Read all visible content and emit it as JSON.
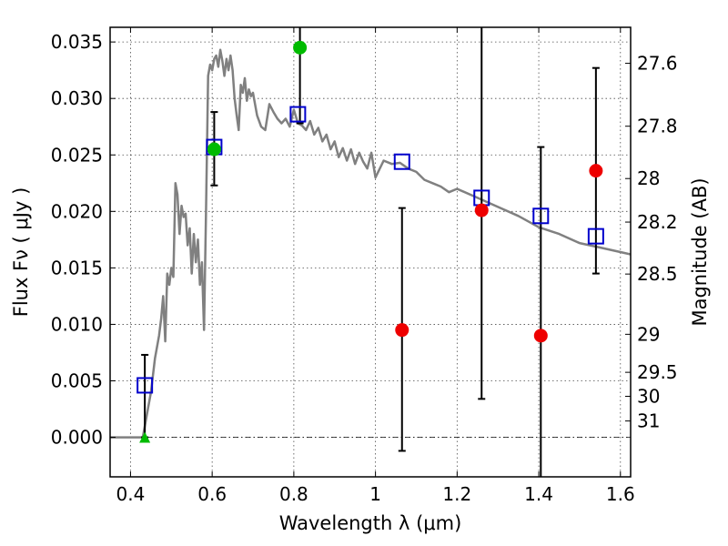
{
  "chart_data": {
    "type": "scatter",
    "xlabel": "Wavelength  λ (μm)",
    "ylabel": "Flux  Fν  ( μJy )",
    "ylabel_right": "Magnitude (AB)",
    "xlim": [
      0.35,
      1.625
    ],
    "ylim": [
      -0.0035,
      0.0363
    ],
    "grid": true,
    "x_ticks": [
      {
        "value": 0.4,
        "label": "0.4"
      },
      {
        "value": 0.6,
        "label": "0.6"
      },
      {
        "value": 0.8,
        "label": "0.8"
      },
      {
        "value": 1.0,
        "label": "1"
      },
      {
        "value": 1.2,
        "label": "1.2"
      },
      {
        "value": 1.4,
        "label": "1.4"
      },
      {
        "value": 1.6,
        "label": "1.6"
      }
    ],
    "y_ticks": [
      {
        "value": 0.0,
        "label": "0.000"
      },
      {
        "value": 0.005,
        "label": "0.005"
      },
      {
        "value": 0.01,
        "label": "0.010"
      },
      {
        "value": 0.015,
        "label": "0.015"
      },
      {
        "value": 0.02,
        "label": "0.020"
      },
      {
        "value": 0.025,
        "label": "0.025"
      },
      {
        "value": 0.03,
        "label": "0.030"
      },
      {
        "value": 0.035,
        "label": "0.035"
      }
    ],
    "right_ticks": [
      {
        "mag": 27.6,
        "label": "27.6"
      },
      {
        "mag": 27.8,
        "label": "27.8"
      },
      {
        "mag": 28.0,
        "label": "28"
      },
      {
        "mag": 28.2,
        "label": "28.2"
      },
      {
        "mag": 28.5,
        "label": "28.5"
      },
      {
        "mag": 29.0,
        "label": "29"
      },
      {
        "mag": 29.5,
        "label": "29.5"
      },
      {
        "mag": 30.0,
        "label": "30"
      },
      {
        "mag": 31.0,
        "label": "31"
      }
    ],
    "series": [
      {
        "kind": "line",
        "color": "#808080",
        "x": [
          0.35,
          0.43,
          0.44,
          0.45,
          0.46,
          0.47,
          0.475,
          0.48,
          0.485,
          0.49,
          0.495,
          0.5,
          0.505,
          0.51,
          0.515,
          0.52,
          0.525,
          0.53,
          0.535,
          0.54,
          0.545,
          0.55,
          0.555,
          0.56,
          0.565,
          0.57,
          0.575,
          0.58,
          0.585,
          0.59,
          0.595,
          0.6,
          0.605,
          0.61,
          0.615,
          0.62,
          0.625,
          0.63,
          0.635,
          0.64,
          0.645,
          0.65,
          0.655,
          0.66,
          0.665,
          0.67,
          0.675,
          0.68,
          0.685,
          0.69,
          0.695,
          0.7,
          0.71,
          0.72,
          0.73,
          0.74,
          0.75,
          0.76,
          0.77,
          0.78,
          0.79,
          0.8,
          0.81,
          0.82,
          0.83,
          0.84,
          0.85,
          0.86,
          0.87,
          0.88,
          0.89,
          0.9,
          0.91,
          0.92,
          0.93,
          0.94,
          0.95,
          0.96,
          0.97,
          0.98,
          0.99,
          1.0,
          1.02,
          1.04,
          1.06,
          1.08,
          1.1,
          1.12,
          1.14,
          1.16,
          1.18,
          1.2,
          1.25,
          1.3,
          1.35,
          1.4,
          1.45,
          1.5,
          1.55,
          1.6,
          1.625
        ],
        "y": [
          0.0,
          0.0,
          0.002,
          0.004,
          0.007,
          0.009,
          0.0105,
          0.0125,
          0.0085,
          0.0145,
          0.0135,
          0.015,
          0.0142,
          0.0225,
          0.0215,
          0.018,
          0.0205,
          0.0195,
          0.0198,
          0.017,
          0.0185,
          0.0145,
          0.018,
          0.0155,
          0.0175,
          0.0135,
          0.0155,
          0.0095,
          0.02,
          0.032,
          0.033,
          0.0325,
          0.0335,
          0.0338,
          0.0328,
          0.0343,
          0.0333,
          0.032,
          0.0335,
          0.0325,
          0.0338,
          0.0325,
          0.03,
          0.0285,
          0.0272,
          0.0312,
          0.0305,
          0.0318,
          0.0298,
          0.0308,
          0.0302,
          0.0305,
          0.0285,
          0.0275,
          0.0272,
          0.0295,
          0.0288,
          0.0282,
          0.0278,
          0.0282,
          0.0275,
          0.029,
          0.0278,
          0.0276,
          0.0272,
          0.028,
          0.0268,
          0.0274,
          0.0262,
          0.0268,
          0.0255,
          0.0262,
          0.0248,
          0.0256,
          0.0245,
          0.0255,
          0.0242,
          0.0252,
          0.0244,
          0.0238,
          0.0252,
          0.023,
          0.0245,
          0.0242,
          0.0243,
          0.0238,
          0.0235,
          0.0228,
          0.0225,
          0.0222,
          0.0217,
          0.022,
          0.0212,
          0.0204,
          0.0196,
          0.0186,
          0.018,
          0.0172,
          0.0168,
          0.0164,
          0.0162
        ]
      },
      {
        "kind": "open-square",
        "color": "#0000cc",
        "x": [
          0.435,
          0.605,
          0.81,
          1.065,
          1.26,
          1.405,
          1.54
        ],
        "y": [
          0.0046,
          0.0257,
          0.0286,
          0.0244,
          0.0212,
          0.0196,
          0.0178
        ]
      },
      {
        "kind": "filled-circle",
        "color": "#00bb00",
        "x": [
          0.605,
          0.815
        ],
        "y": [
          0.0255,
          0.0345
        ]
      },
      {
        "kind": "filled-circle",
        "color": "#ee0000",
        "x": [
          1.065,
          1.26,
          1.405,
          1.54
        ],
        "y": [
          0.0095,
          0.0201,
          0.009,
          0.0236
        ]
      },
      {
        "kind": "triangle",
        "color": "#00bb00",
        "x": [
          0.435
        ],
        "y": [
          0.0
        ]
      }
    ],
    "errorbars": [
      {
        "x": 0.435,
        "low": 0.0,
        "high": 0.0073
      },
      {
        "x": 0.605,
        "low": 0.0223,
        "high": 0.0288
      },
      {
        "x": 0.815,
        "low": 0.0278,
        "high": 0.0363
      },
      {
        "x": 1.065,
        "low": -0.0012,
        "high": 0.0203
      },
      {
        "x": 1.26,
        "low": 0.0034,
        "high": 0.0363
      },
      {
        "x": 1.405,
        "low": -0.0035,
        "high": 0.0257
      },
      {
        "x": 1.54,
        "low": 0.0145,
        "high": 0.0327
      }
    ]
  }
}
